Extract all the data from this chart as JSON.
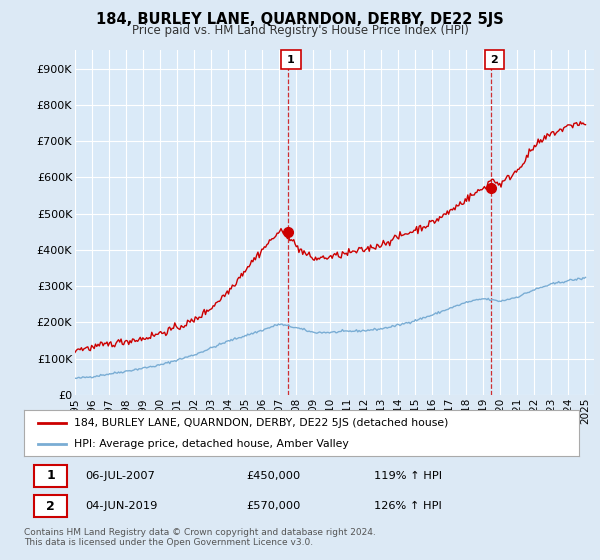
{
  "title": "184, BURLEY LANE, QUARNDON, DERBY, DE22 5JS",
  "subtitle": "Price paid vs. HM Land Registry's House Price Index (HPI)",
  "background_color": "#dce9f5",
  "plot_bg_color": "#daeaf8",
  "ylim": [
    0,
    950000
  ],
  "yticks": [
    0,
    100000,
    200000,
    300000,
    400000,
    500000,
    600000,
    700000,
    800000,
    900000
  ],
  "ytick_labels": [
    "£0",
    "£100K",
    "£200K",
    "£300K",
    "£400K",
    "£500K",
    "£600K",
    "£700K",
    "£800K",
    "£900K"
  ],
  "xlim_start": 1995.0,
  "xlim_end": 2025.5,
  "xticks": [
    1995,
    1996,
    1997,
    1998,
    1999,
    2000,
    2001,
    2002,
    2003,
    2004,
    2005,
    2006,
    2007,
    2008,
    2009,
    2010,
    2011,
    2012,
    2013,
    2014,
    2015,
    2016,
    2017,
    2018,
    2019,
    2020,
    2021,
    2022,
    2023,
    2024,
    2025
  ],
  "red_line_color": "#cc0000",
  "blue_line_color": "#7aadd4",
  "marker1_x": 2007.5,
  "marker1_y": 450000,
  "marker1_label": "1",
  "marker1_date": "06-JUL-2007",
  "marker1_price": "£450,000",
  "marker1_hpi": "119% ↑ HPI",
  "marker2_x": 2019.45,
  "marker2_y": 570000,
  "marker2_label": "2",
  "marker2_date": "04-JUN-2019",
  "marker2_price": "£570,000",
  "marker2_hpi": "126% ↑ HPI",
  "legend_line1": "184, BURLEY LANE, QUARNDON, DERBY, DE22 5JS (detached house)",
  "legend_line2": "HPI: Average price, detached house, Amber Valley",
  "footer": "Contains HM Land Registry data © Crown copyright and database right 2024.\nThis data is licensed under the Open Government Licence v3.0."
}
